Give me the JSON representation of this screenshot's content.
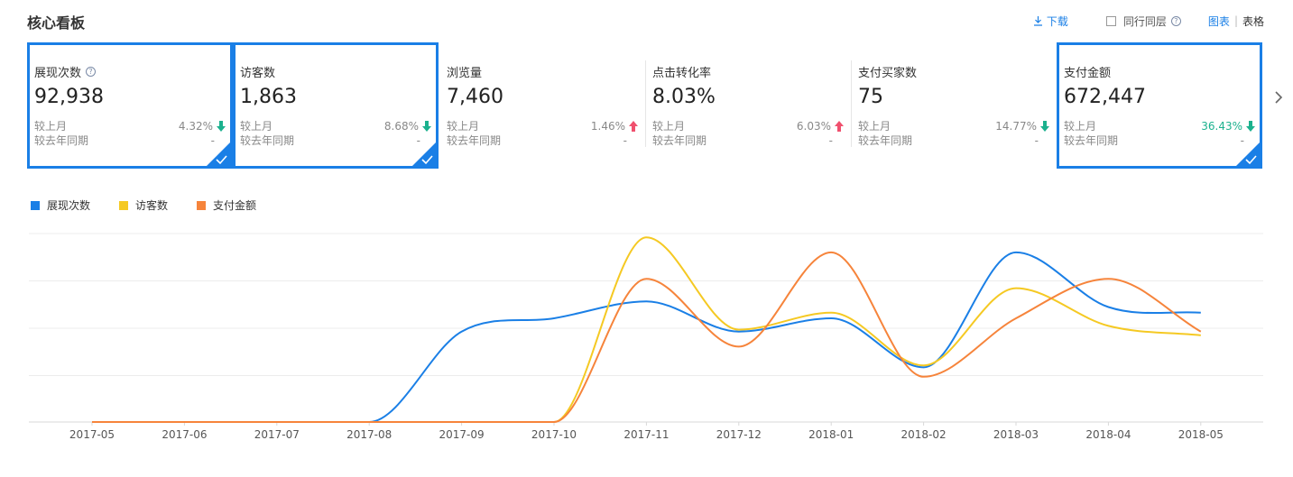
{
  "title": "核心看板",
  "toolbar": {
    "download_label": "下载",
    "compare_label": "同行同层",
    "view_chart_label": "图表",
    "view_separator": "|",
    "view_table_label": "表格"
  },
  "metrics": [
    {
      "label": "展现次数",
      "has_help": true,
      "value": "92,938",
      "row1_label": "较上月",
      "row1_value": "4.32%",
      "row1_trend": "down",
      "row2_label": "较去年同期",
      "row2_value": "-",
      "selected": true
    },
    {
      "label": "访客数",
      "has_help": false,
      "value": "1,863",
      "row1_label": "较上月",
      "row1_value": "8.68%",
      "row1_trend": "down",
      "row2_label": "较去年同期",
      "row2_value": "-",
      "selected": true
    },
    {
      "label": "浏览量",
      "has_help": false,
      "value": "7,460",
      "row1_label": "较上月",
      "row1_value": "1.46%",
      "row1_trend": "up",
      "row2_label": "较去年同期",
      "row2_value": "-",
      "selected": false
    },
    {
      "label": "点击转化率",
      "has_help": false,
      "value": "8.03%",
      "row1_label": "较上月",
      "row1_value": "6.03%",
      "row1_trend": "up",
      "row2_label": "较去年同期",
      "row2_value": "-",
      "selected": false
    },
    {
      "label": "支付买家数",
      "has_help": false,
      "value": "75",
      "row1_label": "较上月",
      "row1_value": "14.77%",
      "row1_trend": "down",
      "row2_label": "较去年同期",
      "row2_value": "-",
      "selected": false
    },
    {
      "label": "支付金额",
      "has_help": false,
      "value": "672,447",
      "row1_label": "较上月",
      "row1_value": "36.43%",
      "row1_trend": "down",
      "row2_label": "较去年同期",
      "row2_value": "-",
      "selected": true,
      "highlight": true
    }
  ],
  "colors": {
    "accent": "#1a7fe6",
    "trend_down": "#1bb18e",
    "trend_up": "#f0506e",
    "series_blue": "#1a7fe6",
    "series_yellow": "#f5c923",
    "series_orange": "#f6843b"
  },
  "chart_data": {
    "type": "line",
    "smooth": true,
    "x": [
      "2017-05",
      "2017-06",
      "2017-07",
      "2017-08",
      "2017-09",
      "2017-10",
      "2017-11",
      "2017-12",
      "2018-01",
      "2018-02",
      "2018-03",
      "2018-04",
      "2018-05"
    ],
    "y_axis_labels_shown": false,
    "relative_scale_max": 100,
    "grid": true,
    "legend": "top-left",
    "series": [
      {
        "name": "展现次数",
        "color": "#1a7fe6",
        "values": [
          0,
          0,
          0,
          0,
          48,
          55,
          64,
          48,
          55,
          29,
          90,
          61,
          58
        ]
      },
      {
        "name": "访客数",
        "color": "#f5c923",
        "values": [
          0,
          0,
          0,
          0,
          0,
          0,
          98,
          49,
          58,
          30,
          71,
          51,
          46
        ]
      },
      {
        "name": "支付金额",
        "color": "#f6843b",
        "values": [
          0,
          0,
          0,
          0,
          0,
          0,
          76,
          40,
          90,
          24,
          55,
          76,
          48
        ]
      }
    ]
  }
}
